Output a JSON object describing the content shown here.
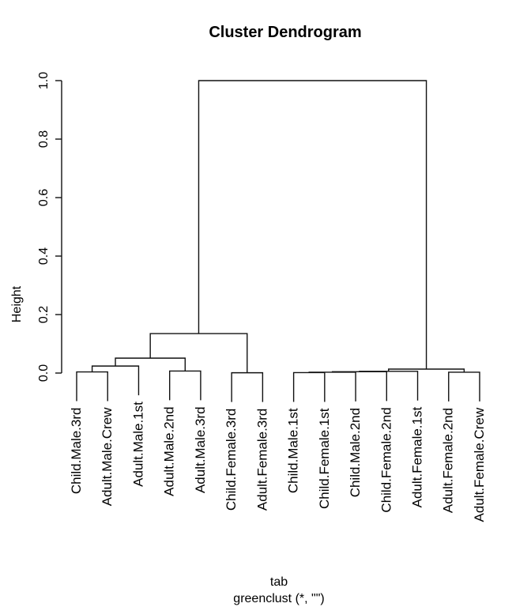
{
  "chart_data": {
    "type": "dendrogram",
    "title": "Cluster Dendrogram",
    "ylabel": "Height",
    "xlabel_line1": "tab",
    "xlabel_line2": "greenclust (*, \"\")",
    "ylim": [
      0.0,
      1.0
    ],
    "yticks": [
      "0.0",
      "0.2",
      "0.4",
      "0.6",
      "0.8",
      "1.0"
    ],
    "ytick_values": [
      0.0,
      0.2,
      0.4,
      0.6,
      0.8,
      1.0
    ],
    "grid": "off",
    "line_color": "#111111",
    "background_color": "#ffffff",
    "hang": 0.1,
    "leaves": [
      "Child.Male.3rd",
      "Adult.Male.Crew",
      "Adult.Male.1st",
      "Adult.Male.2nd",
      "Adult.Male.3rd",
      "Child.Female.3rd",
      "Adult.Female.3rd",
      "Child.Male.1st",
      "Child.Female.1st",
      "Child.Male.2nd",
      "Child.Female.2nd",
      "Adult.Female.1st",
      "Adult.Female.2nd",
      "Adult.Female.Crew"
    ],
    "merges": [
      {
        "children": [
          -1,
          -2
        ],
        "height": 0.004
      },
      {
        "children": [
          1,
          -3
        ],
        "height": 0.024
      },
      {
        "children": [
          -4,
          -5
        ],
        "height": 0.007
      },
      {
        "children": [
          2,
          3
        ],
        "height": 0.051
      },
      {
        "children": [
          -6,
          -7
        ],
        "height": 0.001
      },
      {
        "children": [
          4,
          5
        ],
        "height": 0.135
      },
      {
        "children": [
          -8,
          -9
        ],
        "height": 0.0015
      },
      {
        "children": [
          7,
          -10
        ],
        "height": 0.003
      },
      {
        "children": [
          8,
          -11
        ],
        "height": 0.0045
      },
      {
        "children": [
          9,
          -12
        ],
        "height": 0.006
      },
      {
        "children": [
          -13,
          -14
        ],
        "height": 0.003
      },
      {
        "children": [
          10,
          11
        ],
        "height": 0.0135
      },
      {
        "children": [
          6,
          12
        ],
        "height": 1.0
      }
    ]
  }
}
